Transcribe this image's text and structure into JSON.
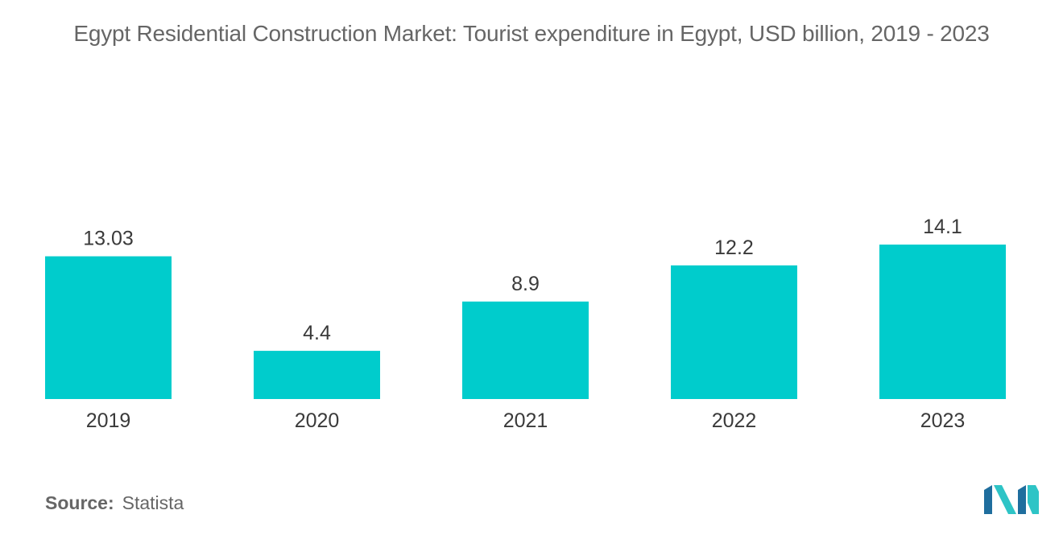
{
  "chart_data": {
    "type": "bar",
    "title": "Egypt Residential Construction Market: Tourist expenditure in Egypt, USD billion, 2019 - 2023",
    "categories": [
      "2019",
      "2020",
      "2021",
      "2022",
      "2023"
    ],
    "values": [
      13.03,
      4.4,
      8.9,
      12.2,
      14.1
    ],
    "value_labels": [
      "13.03",
      "4.4",
      "8.9",
      "12.2",
      "14.1"
    ],
    "xlabel": "",
    "ylabel": "",
    "ylim": [
      0,
      14.1
    ],
    "grid": false,
    "legend": "none",
    "bar_color": "#00CCCC"
  },
  "footer": {
    "source_label": "Source:",
    "source_value": "Statista"
  },
  "logo": {
    "icon": "mordor-intelligence-logo-icon",
    "colors": [
      "#1F6E9E",
      "#2EC4C6"
    ]
  }
}
